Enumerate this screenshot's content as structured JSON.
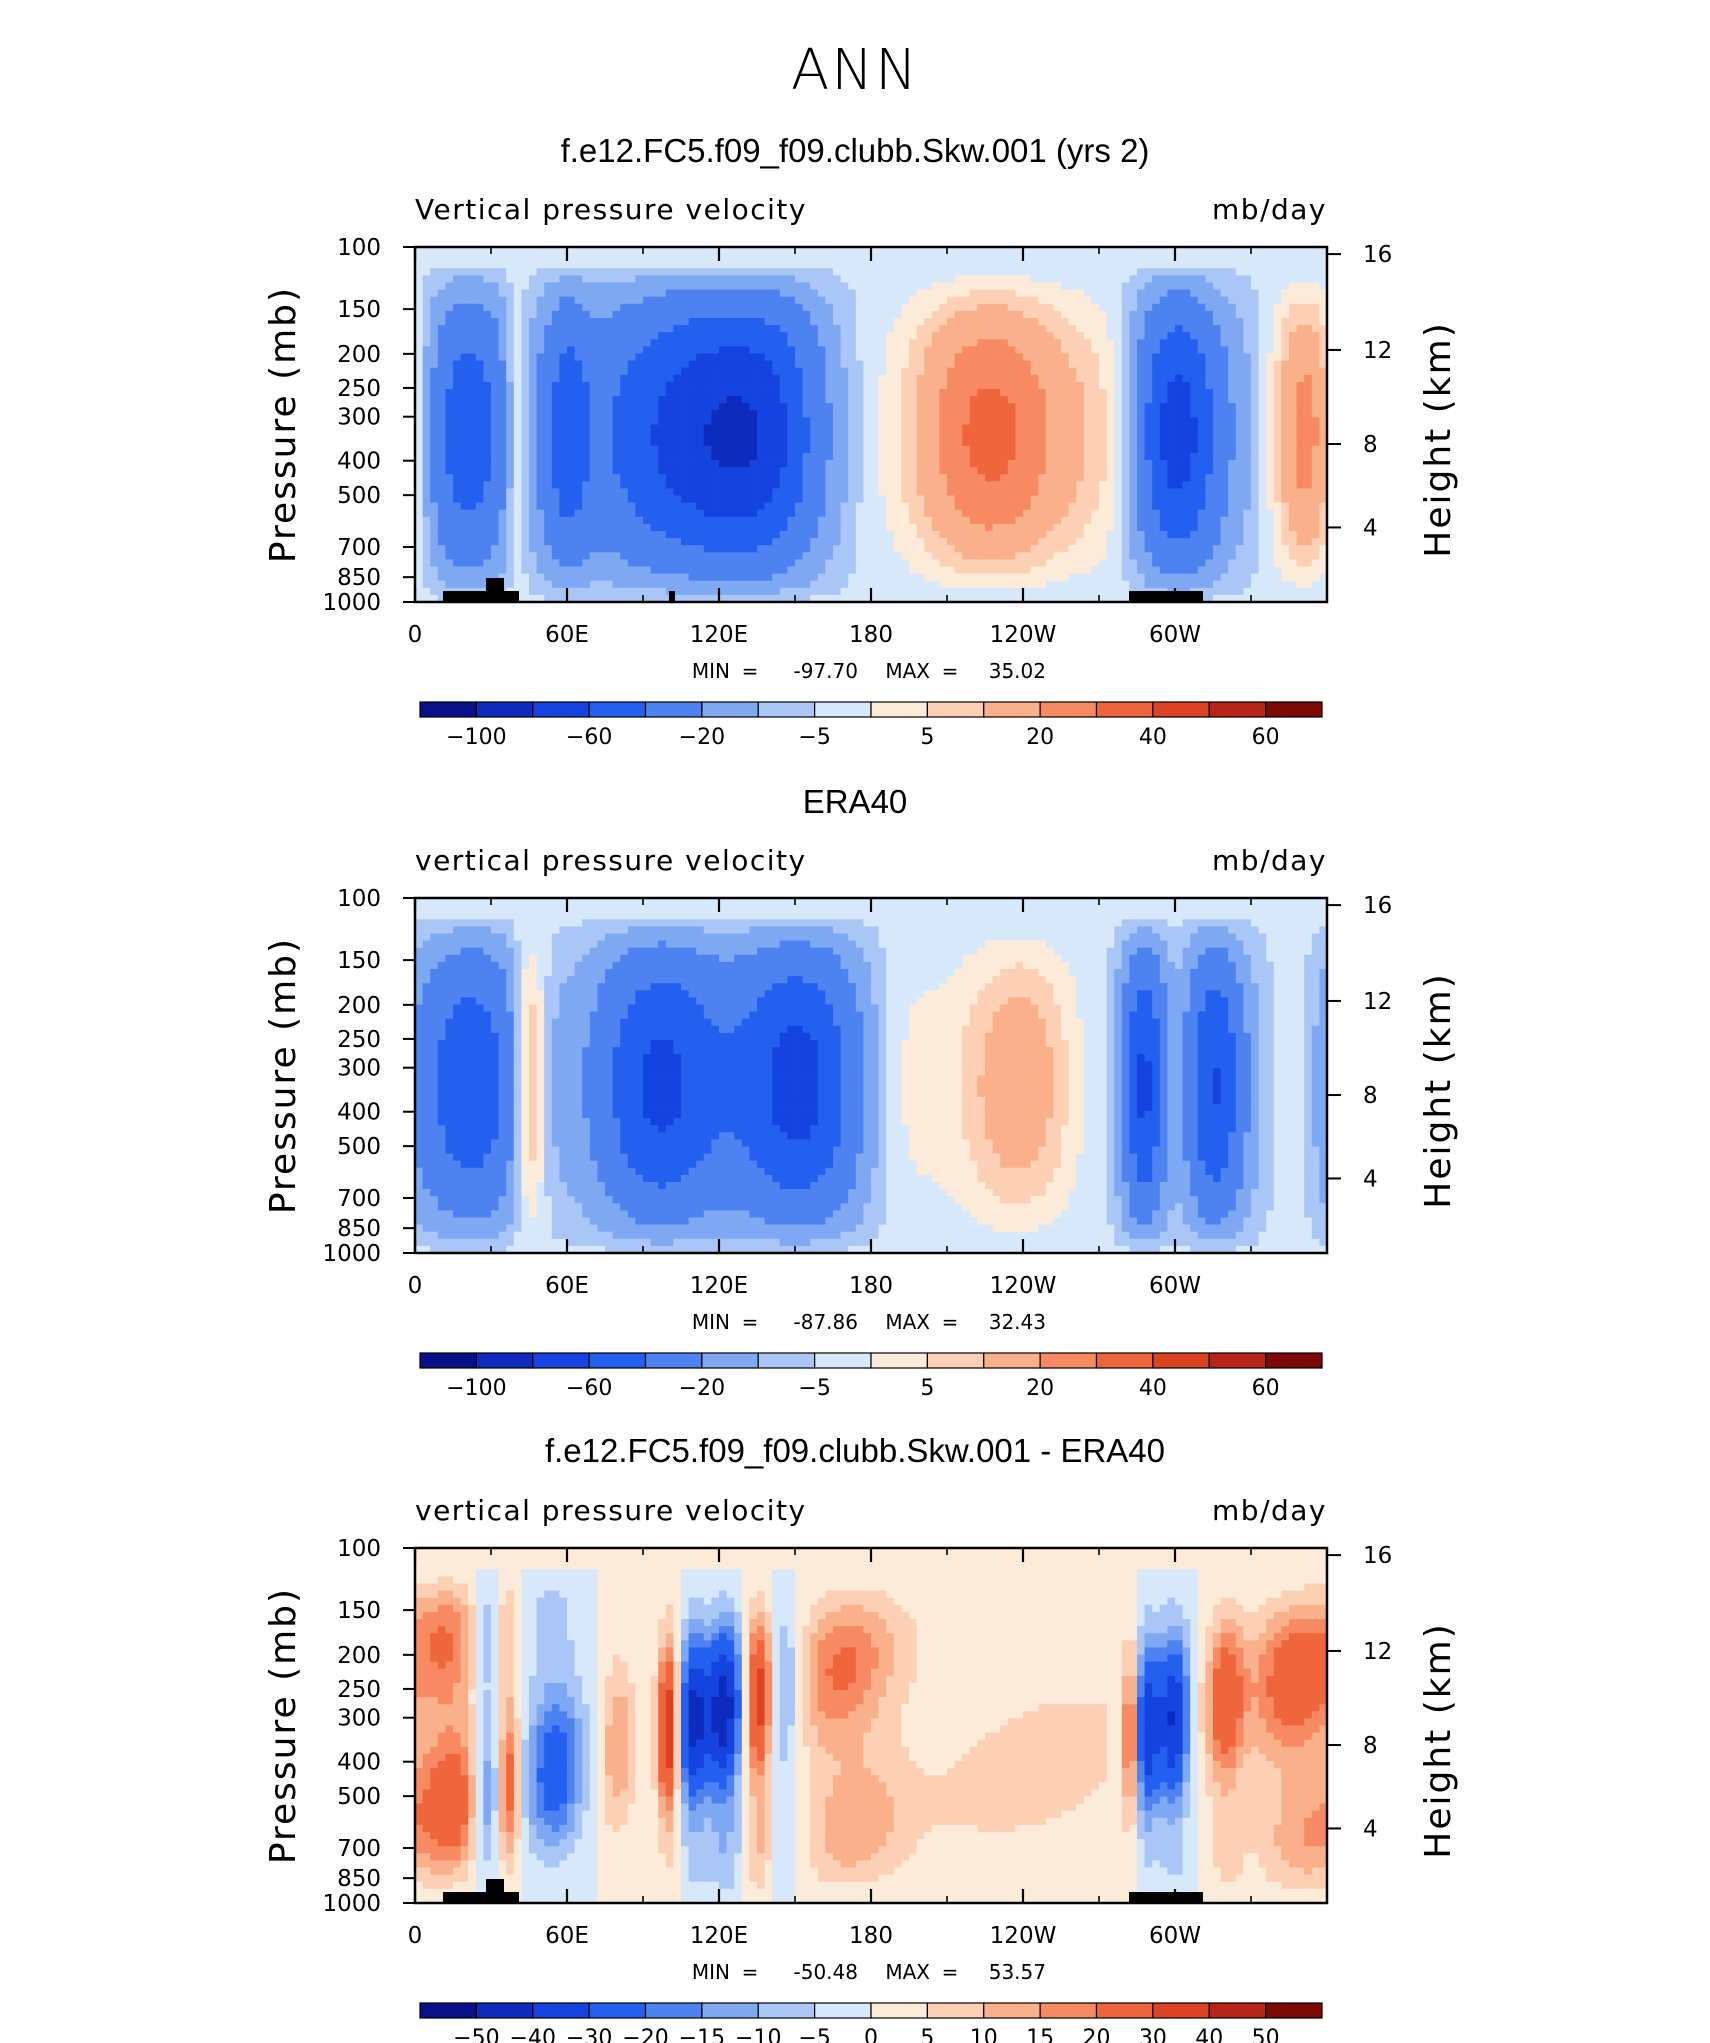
{
  "main_title": "ANN",
  "colors": {
    "scale1": [
      "#08108a",
      "#0d2bbd",
      "#1443e0",
      "#2460f0",
      "#4d82f0",
      "#7fa8f3",
      "#a9c6f6",
      "#d7e8fb",
      "#fdebd9",
      "#fdd0b5",
      "#fbb08c",
      "#f78a62",
      "#f0663c",
      "#dc4322",
      "#b8231a",
      "#7e0a08"
    ],
    "scale2": [
      "#08108a",
      "#0d2bbd",
      "#1443e0",
      "#2460f0",
      "#4d82f0",
      "#7fa8f3",
      "#a9c6f6",
      "#d7e8fb",
      "#fdebd9",
      "#fdd0b5",
      "#fbb08c",
      "#f78a62",
      "#f0663c",
      "#dc4322",
      "#b8231a",
      "#7e0a08"
    ]
  },
  "chart_data": [
    {
      "type": "heatmap",
      "title": "f.e12.FC5.f09_f09.clubb.Skw.001 (yrs 2)",
      "left_label": "Vertical pressure velocity",
      "right_label": "mb/day",
      "ylabel": "Pressure (mb)",
      "y2label": "Height (km)",
      "x_tick_labels": [
        "0",
        "60E",
        "120E",
        "180",
        "120W",
        "60W"
      ],
      "y_tick_labels": [
        "100",
        "150",
        "200",
        "250",
        "300",
        "400",
        "500",
        "700",
        "850",
        "1000"
      ],
      "y2_tick_labels": [
        "16",
        "12",
        "8",
        "4"
      ],
      "stats": {
        "min_label": "MIN",
        "min": "-97.70",
        "max_label": "MAX",
        "max": "35.02"
      },
      "colorbar_labels": [
        "−100",
        "−60",
        "−20",
        "−5",
        "5",
        "20",
        "40",
        "60"
      ],
      "colorscale": "scale1",
      "extremes": {
        "min": -97.7,
        "max": 35.02
      }
    },
    {
      "type": "heatmap",
      "title": "ERA40",
      "left_label": "vertical pressure velocity",
      "right_label": "mb/day",
      "ylabel": "Pressure (mb)",
      "y2label": "Height (km)",
      "x_tick_labels": [
        "0",
        "60E",
        "120E",
        "180",
        "120W",
        "60W"
      ],
      "y_tick_labels": [
        "100",
        "150",
        "200",
        "250",
        "300",
        "400",
        "500",
        "700",
        "850",
        "1000"
      ],
      "y2_tick_labels": [
        "16",
        "12",
        "8",
        "4"
      ],
      "stats": {
        "min_label": "MIN",
        "min": "-87.86",
        "max_label": "MAX",
        "max": "32.43"
      },
      "colorbar_labels": [
        "−100",
        "−60",
        "−20",
        "−5",
        "5",
        "20",
        "40",
        "60"
      ],
      "colorscale": "scale1",
      "extremes": {
        "min": -87.86,
        "max": 32.43
      }
    },
    {
      "type": "heatmap",
      "title": "f.e12.FC5.f09_f09.clubb.Skw.001 - ERA40",
      "left_label": "vertical pressure velocity",
      "right_label": "mb/day",
      "ylabel": "Pressure (mb)",
      "y2label": "Height (km)",
      "x_tick_labels": [
        "0",
        "60E",
        "120E",
        "180",
        "120W",
        "60W"
      ],
      "y_tick_labels": [
        "100",
        "150",
        "200",
        "250",
        "300",
        "400",
        "500",
        "700",
        "850",
        "1000"
      ],
      "y2_tick_labels": [
        "16",
        "12",
        "8",
        "4"
      ],
      "stats": {
        "min_label": "MIN",
        "min": "-50.48",
        "max_label": "MAX",
        "max": "53.57"
      },
      "colorbar_labels": [
        "−50",
        "−40",
        "−30",
        "−20",
        "−15",
        "−10",
        "−5",
        "0",
        "5",
        "10",
        "15",
        "20",
        "30",
        "40",
        "50"
      ],
      "colorscale": "scale2",
      "extremes": {
        "min": -50.48,
        "max": 53.57
      }
    }
  ]
}
